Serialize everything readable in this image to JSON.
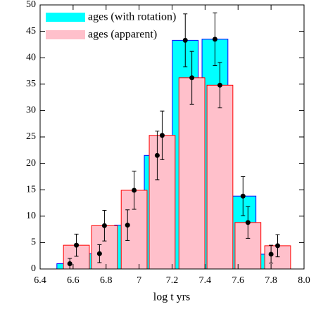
{
  "chart_data": {
    "type": "bar",
    "xlabel": "log t yrs",
    "xlim": [
      6.4,
      8.0
    ],
    "xticks": [
      6.4,
      6.6,
      6.8,
      7.0,
      7.2,
      7.4,
      7.6,
      7.8,
      {
        "value": 8.0,
        "label": "8.0"
      }
    ],
    "ylim": [
      0,
      50
    ],
    "yticks": [
      0,
      5,
      10,
      15,
      20,
      25,
      30,
      35,
      40,
      45,
      50
    ],
    "legend": "upper left",
    "series": [
      {
        "name": "ages (with rotation)",
        "color": "#00ffff",
        "edgecolor": "#0000ff",
        "x": [
          6.58,
          6.76,
          6.93,
          7.11,
          7.28,
          7.46,
          7.63,
          7.8
        ],
        "values": [
          1,
          2.9,
          8.3,
          21.5,
          43.3,
          43.5,
          13.8,
          2.8
        ],
        "errors": [
          1,
          1.7,
          2.9,
          4.6,
          5,
          5,
          3.7,
          1.7
        ]
      },
      {
        "name": "ages (apparent)",
        "color": "#ffc0cb",
        "edgecolor": "#ff0000",
        "x": [
          6.62,
          6.79,
          6.97,
          7.14,
          7.32,
          7.49,
          7.66,
          7.84
        ],
        "values": [
          4.5,
          8.2,
          14.9,
          25.3,
          36.2,
          34.8,
          8.8,
          4.4
        ],
        "errors": [
          2.1,
          2.9,
          3.6,
          4.6,
          5,
          4.3,
          3,
          2.1
        ]
      }
    ]
  }
}
